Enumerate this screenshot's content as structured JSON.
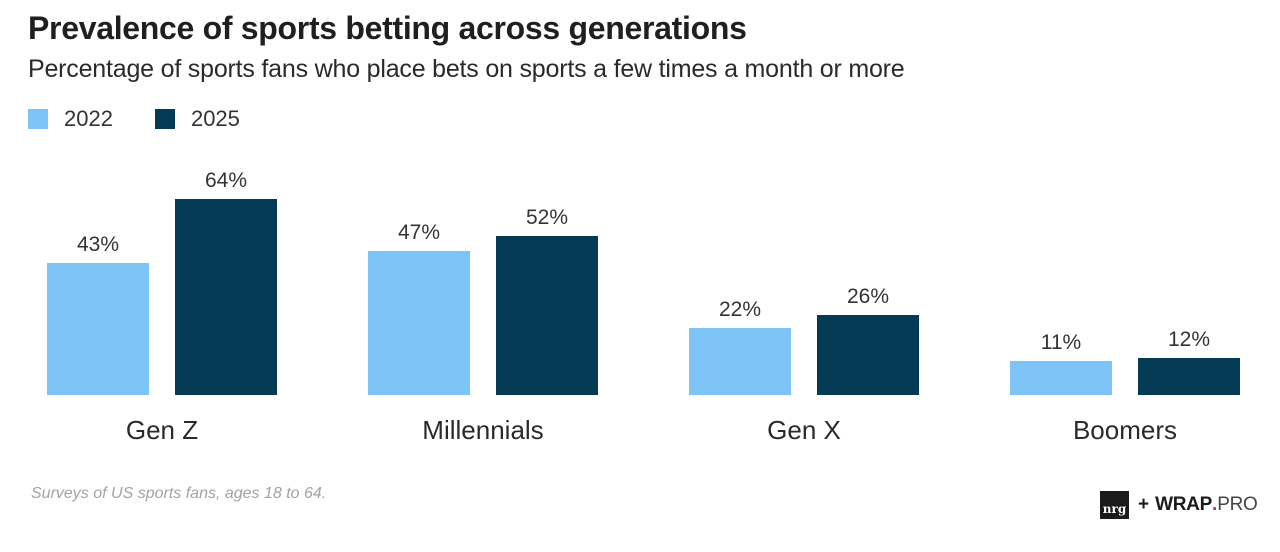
{
  "header": {
    "title": "Prevalence of sports betting across generations",
    "subtitle": "Percentage of sports fans who place bets on sports a few times a month or more"
  },
  "legend": [
    {
      "label": "2022",
      "color": "#7fc4f7"
    },
    {
      "label": "2025",
      "color": "#053a55"
    }
  ],
  "footer": {
    "note": "Surveys of US sports fans, ages 18 to 64.",
    "logo_nrg": "nrg",
    "logo_plus": "+",
    "logo_wrap": "WRAP",
    "logo_dot": ".",
    "logo_pro": "PRO"
  },
  "chart_data": {
    "type": "bar",
    "title": "Prevalence of sports betting across generations",
    "subtitle": "Percentage of sports fans who place bets on sports a few times a month or more",
    "xlabel": "",
    "ylabel": "",
    "categories": [
      "Gen Z",
      "Millennials",
      "Gen X",
      "Boomers"
    ],
    "series": [
      {
        "name": "2022",
        "color": "#7fc4f7",
        "values": [
          43,
          47,
          22,
          11
        ],
        "labels": [
          "43%",
          "47%",
          "22%",
          "11%"
        ]
      },
      {
        "name": "2025",
        "color": "#053a55",
        "values": [
          64,
          52,
          26,
          12
        ],
        "labels": [
          "64%",
          "52%",
          "26%",
          "12%"
        ]
      }
    ],
    "ylim": [
      0,
      70
    ],
    "grid": false,
    "legend_position": "top-left",
    "note": "Surveys of US sports fans, ages 18 to 64."
  }
}
